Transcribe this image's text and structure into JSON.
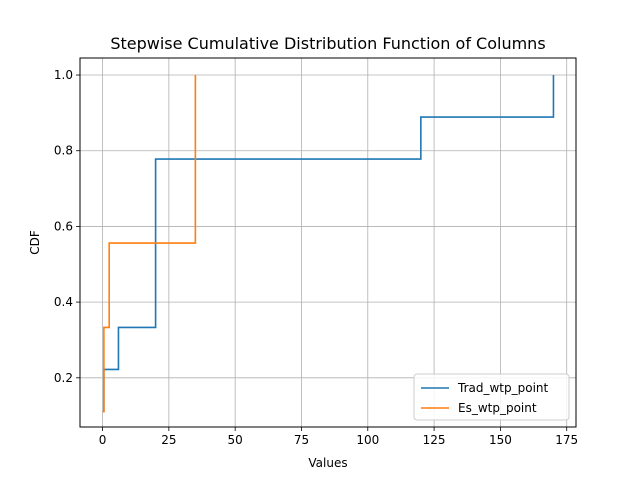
{
  "chart_data": {
    "type": "line",
    "step": true,
    "title": "Stepwise Cumulative Distribution Function of Columns",
    "xlabel": "Values",
    "ylabel": "CDF",
    "xlim": [
      -8.5,
      178.5
    ],
    "ylim": [
      0.07,
      1.045
    ],
    "xticks": [
      0,
      25,
      50,
      75,
      100,
      125,
      150,
      175
    ],
    "yticks": [
      0.2,
      0.4,
      0.6,
      0.8,
      1.0
    ],
    "xtick_labels": [
      "0",
      "25",
      "50",
      "75",
      "100",
      "125",
      "150",
      "175"
    ],
    "ytick_labels": [
      "0.2",
      "0.4",
      "0.6",
      "0.8",
      "1.0"
    ],
    "grid": true,
    "legend": "lower-right",
    "series": [
      {
        "name": "Trad_wtp_point",
        "color": "#1f77b4",
        "x": [
          0,
          0.5,
          6,
          20,
          120,
          170
        ],
        "y": [
          0.111,
          0.222,
          0.333,
          0.778,
          0.889,
          1.0
        ]
      },
      {
        "name": "Es_wtp_point",
        "color": "#ff7f0e",
        "x": [
          0,
          0.5,
          2.5,
          35
        ],
        "y": [
          0.111,
          0.333,
          0.556,
          1.0
        ]
      }
    ]
  }
}
